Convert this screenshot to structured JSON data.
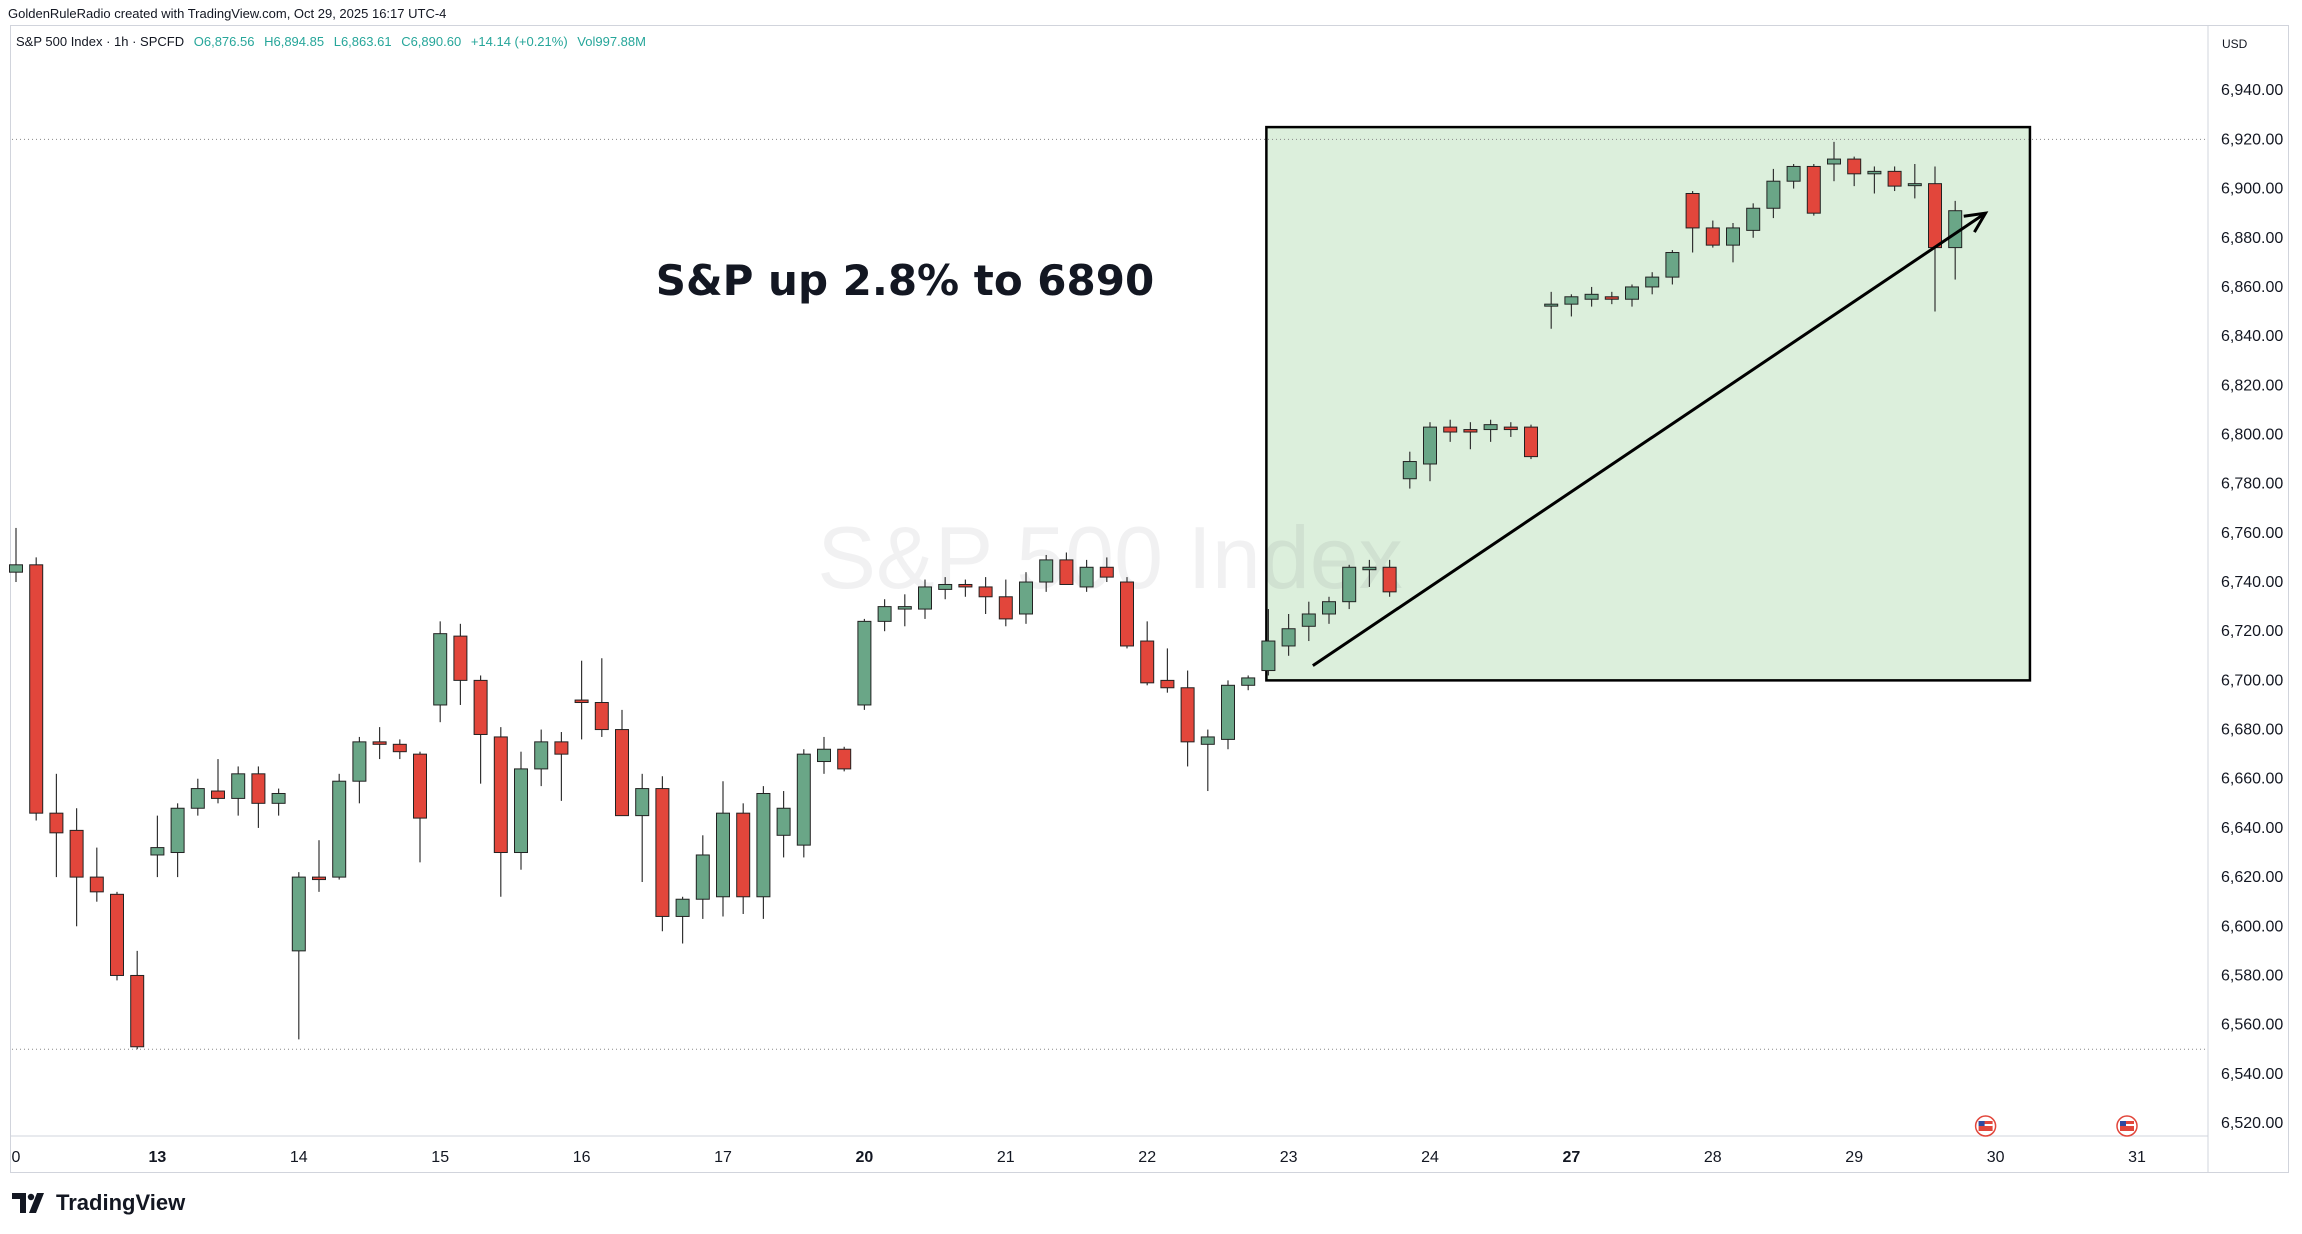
{
  "header": {
    "credit": "GoldenRuleRadio created with TradingView.com, Oct 29, 2025 16:17 UTC-4"
  },
  "legend": {
    "symbol": "S&P 500 Index · 1h · SPCFD",
    "open": "O6,876.56",
    "high": "H6,894.85",
    "low": "L6,863.61",
    "close": "C6,890.60",
    "change": "+14.14 (+0.21%)",
    "volume": "Vol997.88M"
  },
  "price_axis": {
    "currency": "USD"
  },
  "watermark": "S&P 500 Index",
  "annotation": "S&P up 2.8% to 6890",
  "brand": "TradingView",
  "colors": {
    "up": "#6aa687",
    "down": "#e2463b",
    "highlight": "#dcefdc",
    "text": "#131722"
  },
  "chart_data": {
    "type": "candlestick",
    "interval": "1h",
    "ylim": [
      6510,
      6960
    ],
    "yticks": [
      6520,
      6540,
      6560,
      6580,
      6600,
      6620,
      6640,
      6660,
      6680,
      6700,
      6720,
      6740,
      6760,
      6780,
      6800,
      6820,
      6840,
      6860,
      6880,
      6900,
      6920,
      6940
    ],
    "xticks": [
      {
        "index": 0,
        "label": "0",
        "bold": false
      },
      {
        "index": 7,
        "label": "13",
        "bold": true
      },
      {
        "index": 14,
        "label": "14",
        "bold": false
      },
      {
        "index": 21,
        "label": "15",
        "bold": false
      },
      {
        "index": 28,
        "label": "16",
        "bold": false
      },
      {
        "index": 35,
        "label": "17",
        "bold": false
      },
      {
        "index": 42,
        "label": "20",
        "bold": true
      },
      {
        "index": 49,
        "label": "21",
        "bold": false
      },
      {
        "index": 56,
        "label": "22",
        "bold": false
      },
      {
        "index": 63,
        "label": "23",
        "bold": false
      },
      {
        "index": 70,
        "label": "24",
        "bold": false
      },
      {
        "index": 77,
        "label": "27",
        "bold": true
      },
      {
        "index": 84,
        "label": "28",
        "bold": false
      },
      {
        "index": 91,
        "label": "29",
        "bold": false
      },
      {
        "index": 98,
        "label": "30",
        "bold": false
      },
      {
        "index": 105,
        "label": "31",
        "bold": false
      }
    ],
    "reference_lines": [
      6920,
      6550
    ],
    "highlight_box": {
      "x_from": 61.9,
      "x_to": 99.7,
      "y_from": 6700,
      "y_to": 6925
    },
    "trend_arrow": {
      "from": {
        "x": 64.2,
        "y": 6706
      },
      "to": {
        "x": 97.5,
        "y": 6890
      }
    },
    "event_markers": [
      98,
      105
    ],
    "candles": [
      {
        "o": 6744,
        "h": 6762,
        "l": 6740,
        "c": 6747
      },
      {
        "o": 6747,
        "h": 6750,
        "l": 6643,
        "c": 6646
      },
      {
        "o": 6646,
        "h": 6662,
        "l": 6620,
        "c": 6638
      },
      {
        "o": 6639,
        "h": 6648,
        "l": 6600,
        "c": 6620
      },
      {
        "o": 6620,
        "h": 6632,
        "l": 6610,
        "c": 6614
      },
      {
        "o": 6613,
        "h": 6614,
        "l": 6578,
        "c": 6580
      },
      {
        "o": 6580,
        "h": 6590,
        "l": 6550,
        "c": 6551
      },
      {
        "o": 6629,
        "h": 6645,
        "l": 6620,
        "c": 6632
      },
      {
        "o": 6630,
        "h": 6650,
        "l": 6620,
        "c": 6648
      },
      {
        "o": 6648,
        "h": 6660,
        "l": 6645,
        "c": 6656
      },
      {
        "o": 6655,
        "h": 6668,
        "l": 6650,
        "c": 6652
      },
      {
        "o": 6652,
        "h": 6665,
        "l": 6645,
        "c": 6662
      },
      {
        "o": 6662,
        "h": 6665,
        "l": 6640,
        "c": 6650
      },
      {
        "o": 6650,
        "h": 6656,
        "l": 6645,
        "c": 6654
      },
      {
        "o": 6590,
        "h": 6622,
        "l": 6554,
        "c": 6620
      },
      {
        "o": 6620,
        "h": 6635,
        "l": 6614,
        "c": 6619
      },
      {
        "o": 6620,
        "h": 6662,
        "l": 6619,
        "c": 6659
      },
      {
        "o": 6659,
        "h": 6677,
        "l": 6650,
        "c": 6675
      },
      {
        "o": 6675,
        "h": 6681,
        "l": 6668,
        "c": 6674
      },
      {
        "o": 6674,
        "h": 6676,
        "l": 6668,
        "c": 6671
      },
      {
        "o": 6670,
        "h": 6671,
        "l": 6626,
        "c": 6644
      },
      {
        "o": 6690,
        "h": 6724,
        "l": 6683,
        "c": 6719
      },
      {
        "o": 6718,
        "h": 6723,
        "l": 6690,
        "c": 6700
      },
      {
        "o": 6700,
        "h": 6702,
        "l": 6658,
        "c": 6678
      },
      {
        "o": 6677,
        "h": 6681,
        "l": 6612,
        "c": 6630
      },
      {
        "o": 6630,
        "h": 6671,
        "l": 6623,
        "c": 6664
      },
      {
        "o": 6664,
        "h": 6680,
        "l": 6657,
        "c": 6675
      },
      {
        "o": 6675,
        "h": 6679,
        "l": 6651,
        "c": 6670
      },
      {
        "o": 6692,
        "h": 6708,
        "l": 6676,
        "c": 6691
      },
      {
        "o": 6691,
        "h": 6709,
        "l": 6677,
        "c": 6680
      },
      {
        "o": 6680,
        "h": 6688,
        "l": 6645,
        "c": 6645
      },
      {
        "o": 6645,
        "h": 6662,
        "l": 6618,
        "c": 6656
      },
      {
        "o": 6656,
        "h": 6661,
        "l": 6598,
        "c": 6604
      },
      {
        "o": 6604,
        "h": 6612,
        "l": 6593,
        "c": 6611
      },
      {
        "o": 6611,
        "h": 6637,
        "l": 6603,
        "c": 6629
      },
      {
        "o": 6612,
        "h": 6659,
        "l": 6604,
        "c": 6646
      },
      {
        "o": 6646,
        "h": 6650,
        "l": 6605,
        "c": 6612
      },
      {
        "o": 6612,
        "h": 6657,
        "l": 6603,
        "c": 6654
      },
      {
        "o": 6637,
        "h": 6655,
        "l": 6628,
        "c": 6648
      },
      {
        "o": 6633,
        "h": 6672,
        "l": 6628,
        "c": 6670
      },
      {
        "o": 6667,
        "h": 6677,
        "l": 6662,
        "c": 6672
      },
      {
        "o": 6672,
        "h": 6673,
        "l": 6663,
        "c": 6664
      },
      {
        "o": 6690,
        "h": 6725,
        "l": 6688,
        "c": 6724
      },
      {
        "o": 6724,
        "h": 6733,
        "l": 6720,
        "c": 6730
      },
      {
        "o": 6729,
        "h": 6735,
        "l": 6722,
        "c": 6730
      },
      {
        "o": 6729,
        "h": 6741,
        "l": 6725,
        "c": 6738
      },
      {
        "o": 6737,
        "h": 6742,
        "l": 6733,
        "c": 6739
      },
      {
        "o": 6739,
        "h": 6741,
        "l": 6734,
        "c": 6738
      },
      {
        "o": 6738,
        "h": 6742,
        "l": 6727,
        "c": 6734
      },
      {
        "o": 6734,
        "h": 6741,
        "l": 6722,
        "c": 6725
      },
      {
        "o": 6727,
        "h": 6744,
        "l": 6723,
        "c": 6740
      },
      {
        "o": 6740,
        "h": 6751,
        "l": 6736,
        "c": 6749
      },
      {
        "o": 6749,
        "h": 6752,
        "l": 6740,
        "c": 6739
      },
      {
        "o": 6738,
        "h": 6749,
        "l": 6736,
        "c": 6746
      },
      {
        "o": 6746,
        "h": 6750,
        "l": 6740,
        "c": 6742
      },
      {
        "o": 6740,
        "h": 6742,
        "l": 6713,
        "c": 6714
      },
      {
        "o": 6716,
        "h": 6724,
        "l": 6698,
        "c": 6699
      },
      {
        "o": 6700,
        "h": 6713,
        "l": 6695,
        "c": 6697
      },
      {
        "o": 6697,
        "h": 6704,
        "l": 6665,
        "c": 6675
      },
      {
        "o": 6674,
        "h": 6680,
        "l": 6655,
        "c": 6677
      },
      {
        "o": 6676,
        "h": 6700,
        "l": 6672,
        "c": 6698
      },
      {
        "o": 6698,
        "h": 6702,
        "l": 6696,
        "c": 6701
      },
      {
        "o": 6704,
        "h": 6729,
        "l": 6702,
        "c": 6716
      },
      {
        "o": 6714,
        "h": 6727,
        "l": 6710,
        "c": 6721
      },
      {
        "o": 6722,
        "h": 6732,
        "l": 6716,
        "c": 6727
      },
      {
        "o": 6727,
        "h": 6734,
        "l": 6723,
        "c": 6732
      },
      {
        "o": 6732,
        "h": 6747,
        "l": 6729,
        "c": 6746
      },
      {
        "o": 6745,
        "h": 6749,
        "l": 6738,
        "c": 6746
      },
      {
        "o": 6746,
        "h": 6749,
        "l": 6734,
        "c": 6736
      },
      {
        "o": 6782,
        "h": 6793,
        "l": 6778,
        "c": 6789
      },
      {
        "o": 6788,
        "h": 6805,
        "l": 6781,
        "c": 6803
      },
      {
        "o": 6803,
        "h": 6806,
        "l": 6797,
        "c": 6801
      },
      {
        "o": 6802,
        "h": 6805,
        "l": 6794,
        "c": 6801
      },
      {
        "o": 6802,
        "h": 6806,
        "l": 6797,
        "c": 6804
      },
      {
        "o": 6803,
        "h": 6805,
        "l": 6799,
        "c": 6802
      },
      {
        "o": 6803,
        "h": 6804,
        "l": 6790,
        "c": 6791
      },
      {
        "o": 6853,
        "h": 6858,
        "l": 6843,
        "c": 6853
      },
      {
        "o": 6853,
        "h": 6857,
        "l": 6848,
        "c": 6856
      },
      {
        "o": 6855,
        "h": 6860,
        "l": 6852,
        "c": 6857
      },
      {
        "o": 6856,
        "h": 6858,
        "l": 6853,
        "c": 6855
      },
      {
        "o": 6855,
        "h": 6861,
        "l": 6852,
        "c": 6860
      },
      {
        "o": 6860,
        "h": 6866,
        "l": 6857,
        "c": 6864
      },
      {
        "o": 6864,
        "h": 6875,
        "l": 6861,
        "c": 6874
      },
      {
        "o": 6898,
        "h": 6899,
        "l": 6874,
        "c": 6884
      },
      {
        "o": 6884,
        "h": 6887,
        "l": 6876,
        "c": 6877
      },
      {
        "o": 6877,
        "h": 6886,
        "l": 6870,
        "c": 6884
      },
      {
        "o": 6883,
        "h": 6894,
        "l": 6880,
        "c": 6892
      },
      {
        "o": 6892,
        "h": 6908,
        "l": 6888,
        "c": 6903
      },
      {
        "o": 6903,
        "h": 6910,
        "l": 6900,
        "c": 6909
      },
      {
        "o": 6909,
        "h": 6910,
        "l": 6889,
        "c": 6890
      },
      {
        "o": 6910,
        "h": 6919,
        "l": 6903,
        "c": 6912
      },
      {
        "o": 6912,
        "h": 6913,
        "l": 6901,
        "c": 6906
      },
      {
        "o": 6906,
        "h": 6909,
        "l": 6898,
        "c": 6907
      },
      {
        "o": 6907,
        "h": 6909,
        "l": 6899,
        "c": 6901
      },
      {
        "o": 6902,
        "h": 6910,
        "l": 6896,
        "c": 6902
      },
      {
        "o": 6902,
        "h": 6909,
        "l": 6850,
        "c": 6876
      },
      {
        "o": 6876,
        "h": 6895,
        "l": 6863,
        "c": 6891
      }
    ]
  }
}
